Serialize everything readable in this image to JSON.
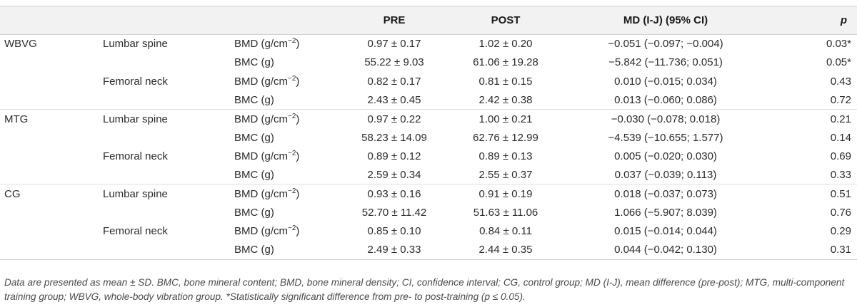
{
  "header": {
    "col_group": "",
    "col_site": "",
    "col_measure": "",
    "col_pre": "PRE",
    "col_post": "POST",
    "col_md": "MD (I-J) (95% CI)",
    "col_p": "p"
  },
  "rows": [
    {
      "group": "WBVG",
      "site": "Lumbar spine",
      "measure": "BMD (g/cm",
      "exp": "−2",
      "measure_suffix": ")",
      "pre": "0.97 ± 0.17",
      "post": "1.02 ± 0.20",
      "md": "−0.051 (−0.097; −0.004)",
      "p": "0.03*"
    },
    {
      "group": "",
      "site": "",
      "measure": "BMC (g)",
      "exp": "",
      "measure_suffix": "",
      "pre": "55.22 ± 9.03",
      "post": "61.06 ± 19.28",
      "md": "−5.842 (−11.736; 0.051)",
      "p": "0.05*"
    },
    {
      "group": "",
      "site": "Femoral neck",
      "measure": "BMD (g/cm",
      "exp": "−2",
      "measure_suffix": ")",
      "pre": "0.82 ± 0.17",
      "post": "0.81 ± 0.15",
      "md": "0.010 (−0.015; 0.034)",
      "p": "0.43"
    },
    {
      "group": "",
      "site": "",
      "measure": "BMC (g)",
      "exp": "",
      "measure_suffix": "",
      "pre": "2.43 ± 0.45",
      "post": "2.42 ± 0.38",
      "md": "0.013 (−0.060; 0.086)",
      "p": "0.72"
    },
    {
      "group": "MTG",
      "site": "Lumbar spine",
      "measure": "BMD (g/cm",
      "exp": "−2",
      "measure_suffix": ")",
      "pre": "0.97 ± 0.22",
      "post": "1.00 ± 0.21",
      "md": "−0.030 (−0.078; 0.018)",
      "p": "0.21"
    },
    {
      "group": "",
      "site": "",
      "measure": "BMC (g)",
      "exp": "",
      "measure_suffix": "",
      "pre": "58.23 ± 14.09",
      "post": "62.76 ± 12.99",
      "md": "−4.539 (−10.655; 1.577)",
      "p": "0.14"
    },
    {
      "group": "",
      "site": "Femoral neck",
      "measure": "BMD (g/cm",
      "exp": "−2",
      "measure_suffix": ")",
      "pre": "0.89 ± 0.12",
      "post": "0.89 ± 0.13",
      "md": "0.005 (−0.020; 0.030)",
      "p": "0.69"
    },
    {
      "group": "",
      "site": "",
      "measure": "BMC (g)",
      "exp": "",
      "measure_suffix": "",
      "pre": "2.59 ± 0.34",
      "post": "2.55 ± 0.37",
      "md": "0.037 (−0.039; 0.113)",
      "p": "0.33"
    },
    {
      "group": "CG",
      "site": "Lumbar spine",
      "measure": "BMD (g/cm",
      "exp": "−2",
      "measure_suffix": ")",
      "pre": "0.93 ± 0.16",
      "post": "0.91 ± 0.19",
      "md": "0.018 (−0.037; 0.073)",
      "p": "0.51"
    },
    {
      "group": "",
      "site": "",
      "measure": "BMC (g)",
      "exp": "",
      "measure_suffix": "",
      "pre": "52.70 ± 11.42",
      "post": "51.63 ± 11.06",
      "md": "1.066 (−5.907; 8.039)",
      "p": "0.76"
    },
    {
      "group": "",
      "site": "Femoral neck",
      "measure": "BMD (g/cm",
      "exp": "−2",
      "measure_suffix": ")",
      "pre": "0.85 ± 0.10",
      "post": "0.84 ± 0.11",
      "md": "0.015 (−0.014; 0.044)",
      "p": "0.29"
    },
    {
      "group": "",
      "site": "",
      "measure": "BMC (g)",
      "exp": "",
      "measure_suffix": "",
      "pre": "2.49 ± 0.33",
      "post": "2.44 ± 0.35",
      "md": "0.044 (−0.042; 0.130)",
      "p": "0.31"
    }
  ],
  "footnote": "Data are presented as mean ± SD. BMC, bone mineral content; BMD, bone mineral density; CI, confidence interval; CG, control group; MD (I-J), mean difference (pre-post); MTG, multi-component training group; WBVG, whole-body vibration group. *Statistically significant difference from pre- to post-training (p ≤ 0.05)."
}
